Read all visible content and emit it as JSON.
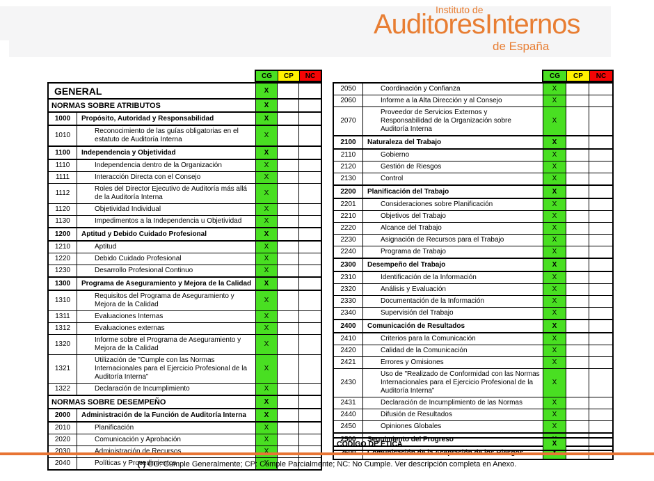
{
  "logo": {
    "line1": "Instituto de",
    "line2": "AuditoresInternos",
    "line3": "de España"
  },
  "colors": {
    "cg_green": "#49df22",
    "cp_yellow": "#fff200",
    "nc_red": "#f50505",
    "logo_orange": "#e87e33",
    "divider_orange": "#e87433",
    "band_gray": "#f5f5f6"
  },
  "columns": [
    "CG",
    "CP",
    "NC"
  ],
  "mark_symbol": "X",
  "left_table": {
    "rows": [
      {
        "style": "g",
        "code": "",
        "label": "GENERAL",
        "mark": "CG"
      },
      {
        "style": "s",
        "code": "",
        "label": "NORMAS SOBRE ATRIBUTOS",
        "mark": "CG"
      },
      {
        "style": "b",
        "code": "1000",
        "label": "Propósito, Autoridad y Responsabilidad",
        "mark": "CG"
      },
      {
        "style": "i",
        "code": "1010",
        "label": "Reconocimiento de las guías obligatorias en el estatuto de Auditoría Interna",
        "mark": "CG"
      },
      {
        "style": "b",
        "code": "1100",
        "label": "Independencia y Objetividad",
        "mark": "CG"
      },
      {
        "style": "i",
        "code": "1110",
        "label": "Independencia dentro de la Organización",
        "mark": "CG"
      },
      {
        "style": "i",
        "code": "1111",
        "label": "Interacción Directa con el Consejo",
        "mark": "CG"
      },
      {
        "style": "i",
        "code": "1112",
        "label": "Roles del Director Ejecutivo de Auditoría más allá de la Auditoría Interna",
        "mark": "CG"
      },
      {
        "style": "i",
        "code": "1120",
        "label": "Objetividad Individual",
        "mark": "CG"
      },
      {
        "style": "i",
        "code": "1130",
        "label": "Impedimentos a la Independencia u Objetividad",
        "mark": "CG"
      },
      {
        "style": "b",
        "code": "1200",
        "label": "Aptitud y Debido Cuidado Profesional",
        "mark": "CG"
      },
      {
        "style": "i",
        "code": "1210",
        "label": "Aptitud",
        "mark": "CG"
      },
      {
        "style": "i",
        "code": "1220",
        "label": "Debido Cuidado Profesional",
        "mark": "CG"
      },
      {
        "style": "i",
        "code": "1230",
        "label": "Desarrollo Profesional Continuo",
        "mark": "CG"
      },
      {
        "style": "b",
        "code": "1300",
        "label": "Programa de Aseguramiento y Mejora de la Calidad",
        "mark": "CG"
      },
      {
        "style": "i",
        "code": "1310",
        "label": "Requisitos del Programa de Aseguramiento y Mejora de la Calidad",
        "mark": "CG"
      },
      {
        "style": "i",
        "code": "1311",
        "label": "Evaluaciones Internas",
        "mark": "CG"
      },
      {
        "style": "i",
        "code": "1312",
        "label": "Evaluaciones externas",
        "mark": "CG"
      },
      {
        "style": "i",
        "code": "1320",
        "label": "Informe sobre el Programa de Aseguramiento y Mejora de la Calidad",
        "mark": "CG"
      },
      {
        "style": "i",
        "code": "1321",
        "label": "Utilización de \"Cumple con las Normas Internacionales para el Ejercicio Profesional de la Auditoría Interna\"",
        "mark": "CG"
      },
      {
        "style": "i",
        "code": "1322",
        "label": "Declaración de Incumplimiento",
        "mark": "CG"
      },
      {
        "style": "s",
        "code": "",
        "label": "NORMAS SOBRE DESEMPEÑO",
        "mark": "CG"
      },
      {
        "style": "b",
        "code": "2000",
        "label": "Administración de la Función de Auditoría Interna",
        "mark": "CG"
      },
      {
        "style": "i",
        "code": "2010",
        "label": "Planificación",
        "mark": "CG"
      },
      {
        "style": "i",
        "code": "2020",
        "label": "Comunicación y Aprobación",
        "mark": "CG"
      },
      {
        "style": "i",
        "code": "2030",
        "label": "Administración de Recursos",
        "mark": "CG"
      },
      {
        "style": "i",
        "code": "2040",
        "label": "Políticas y Procedimientos",
        "mark": "CG"
      }
    ]
  },
  "right_table": {
    "rows": [
      {
        "style": "i",
        "code": "2050",
        "label": "Coordinación y Confianza",
        "mark": "CG"
      },
      {
        "style": "i",
        "code": "2060",
        "label": "Informe a la Alta Dirección y al Consejo",
        "mark": "CG"
      },
      {
        "style": "i",
        "code": "2070",
        "label": "Proveedor de Servicios Externos y Responsabilidad de la Organización sobre Auditoría Interna",
        "mark": "CG"
      },
      {
        "style": "b",
        "code": "2100",
        "label": "Naturaleza del Trabajo",
        "mark": "CG"
      },
      {
        "style": "i",
        "code": "2110",
        "label": "Gobierno",
        "mark": "CG"
      },
      {
        "style": "i",
        "code": "2120",
        "label": "Gestión de Riesgos",
        "mark": "CG"
      },
      {
        "style": "i",
        "code": "2130",
        "label": "Control",
        "mark": "CG"
      },
      {
        "style": "b",
        "code": "2200",
        "label": "Planificación del Trabajo",
        "mark": "CG"
      },
      {
        "style": "i",
        "code": "2201",
        "label": "Consideraciones sobre Planificación",
        "mark": "CG"
      },
      {
        "style": "i",
        "code": "2210",
        "label": "Objetivos del Trabajo",
        "mark": "CG"
      },
      {
        "style": "i",
        "code": "2220",
        "label": "Alcance del Trabajo",
        "mark": "CG"
      },
      {
        "style": "i",
        "code": "2230",
        "label": "Asignación de Recursos para el Trabajo",
        "mark": "CG"
      },
      {
        "style": "i",
        "code": "2240",
        "label": "Programa de Trabajo",
        "mark": "CG"
      },
      {
        "style": "b",
        "code": "2300",
        "label": "Desempeño del Trabajo",
        "mark": "CG"
      },
      {
        "style": "i",
        "code": "2310",
        "label": "Identificación de la Información",
        "mark": "CG"
      },
      {
        "style": "i",
        "code": "2320",
        "label": "Análisis y Evaluación",
        "mark": "CG"
      },
      {
        "style": "i",
        "code": "2330",
        "label": "Documentación de la Información",
        "mark": "CG"
      },
      {
        "style": "i",
        "code": "2340",
        "label": "Supervisión del Trabajo",
        "mark": "CG"
      },
      {
        "style": "b",
        "code": "2400",
        "label": "Comunicación de Resultados",
        "mark": "CG"
      },
      {
        "style": "i",
        "code": "2410",
        "label": "Criterios para la Comunicación",
        "mark": "CG"
      },
      {
        "style": "i",
        "code": "2420",
        "label": "Calidad de la Comunicación",
        "mark": "CG"
      },
      {
        "style": "i",
        "code": "2421",
        "label": "Errores y Omisiones",
        "mark": "CG"
      },
      {
        "style": "i",
        "code": "2430",
        "label": "Uso de \"Realizado de Conformidad con las Normas Internacionales para el Ejercicio Profesional de la Auditoría Interna\"",
        "mark": "CG"
      },
      {
        "style": "i",
        "code": "2431",
        "label": "Declaración de Incumplimiento de las Normas",
        "mark": "CG"
      },
      {
        "style": "i",
        "code": "2440",
        "label": "Difusión de Resultados",
        "mark": "CG"
      },
      {
        "style": "i",
        "code": "2450",
        "label": "Opiniones Globales",
        "mark": "CG"
      },
      {
        "style": "b",
        "code": "2500",
        "label": "Seguimiento del Progreso",
        "mark": "CG"
      },
      {
        "style": "b",
        "code": "2600",
        "label": "Comunicación de la Aceptación de los Riesgos",
        "mark": "CG"
      }
    ]
  },
  "ethics_table": {
    "rows": [
      {
        "style": "e",
        "code": "",
        "label": "CODIGO DE ÉTICA",
        "mark": "CG"
      }
    ]
  },
  "footnote": {
    "prefix": "(*)",
    "text": " CG: Cumple Generalmente; CP: Cumple Parcialmente; NC: No Cumple. Ver descripción completa en Anexo."
  }
}
